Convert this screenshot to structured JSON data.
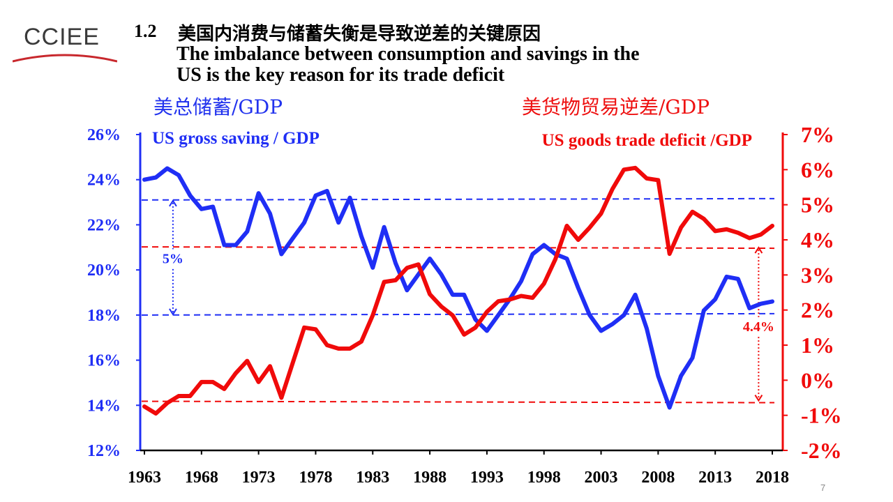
{
  "logo": {
    "text": "CCIEE"
  },
  "page_number": "7",
  "title": {
    "number": "1.2",
    "chinese": "美国内消费与储蓄失衡是导致逆差的关键原因",
    "english_line1": "The imbalance between consumption and savings in the",
    "english_line2": "US is the key reason for its trade deficit"
  },
  "left_cn_label": "美总储蓄/GDP",
  "right_cn_label": "美货物贸易逆差/GDP",
  "colors": {
    "saving": "#1f2ef5",
    "deficit": "#f00a0a",
    "axis_left": "#1f2ef5",
    "axis_right": "#f00a0a"
  },
  "chart_data": {
    "type": "line",
    "title": "",
    "x_ticks": [
      "1963",
      "1968",
      "1973",
      "1978",
      "1983",
      "1988",
      "1993",
      "1998",
      "2003",
      "2008",
      "2013",
      "2018"
    ],
    "xlim": [
      1963,
      2018
    ],
    "y_left": {
      "ylim": [
        12,
        26
      ],
      "ticks": [
        "12%",
        "14%",
        "16%",
        "18%",
        "20%",
        "22%",
        "24%",
        "26%"
      ],
      "tick_values": [
        12,
        14,
        16,
        18,
        20,
        22,
        24,
        26
      ]
    },
    "y_right": {
      "ylim": [
        -2,
        7
      ],
      "ticks": [
        "-2%",
        "-1%",
        "0%",
        "1%",
        "2%",
        "3%",
        "4%",
        "5%",
        "6%",
        "7%"
      ],
      "tick_values": [
        -2,
        -1,
        0,
        1,
        2,
        3,
        4,
        5,
        6,
        7
      ]
    },
    "series": [
      {
        "name": "US gross saving / GDP",
        "axis": "left",
        "x": [
          1963,
          1964,
          1965,
          1966,
          1967,
          1968,
          1969,
          1970,
          1971,
          1972,
          1973,
          1974,
          1975,
          1976,
          1977,
          1978,
          1979,
          1980,
          1981,
          1982,
          1983,
          1984,
          1985,
          1986,
          1987,
          1988,
          1989,
          1990,
          1991,
          1992,
          1993,
          1994,
          1995,
          1996,
          1997,
          1998,
          1999,
          2000,
          2001,
          2002,
          2003,
          2004,
          2005,
          2006,
          2007,
          2008,
          2009,
          2010,
          2011,
          2012,
          2013,
          2014,
          2015,
          2016,
          2017,
          2018
        ],
        "values": [
          24.0,
          24.1,
          24.5,
          24.2,
          23.3,
          22.7,
          22.8,
          21.1,
          21.1,
          21.7,
          23.4,
          22.5,
          20.7,
          21.4,
          22.1,
          23.3,
          23.5,
          22.1,
          23.2,
          21.5,
          20.1,
          21.9,
          20.3,
          19.1,
          19.8,
          20.5,
          19.8,
          18.9,
          18.9,
          17.8,
          17.3,
          18.0,
          18.7,
          19.5,
          20.7,
          21.1,
          20.7,
          20.5,
          19.2,
          18.0,
          17.3,
          17.6,
          18.0,
          18.9,
          17.4,
          15.3,
          13.9,
          15.3,
          16.1,
          18.2,
          18.7,
          19.7,
          19.6,
          18.3,
          18.5,
          18.6
        ]
      },
      {
        "name": "US goods trade deficit /GDP",
        "axis": "right",
        "x": [
          1963,
          1964,
          1965,
          1966,
          1967,
          1968,
          1969,
          1970,
          1971,
          1972,
          1973,
          1974,
          1975,
          1976,
          1977,
          1978,
          1979,
          1980,
          1981,
          1982,
          1983,
          1984,
          1985,
          1986,
          1987,
          1988,
          1989,
          1990,
          1991,
          1992,
          1993,
          1994,
          1995,
          1996,
          1997,
          1998,
          1999,
          2000,
          2001,
          2002,
          2003,
          2004,
          2005,
          2006,
          2007,
          2008,
          2009,
          2010,
          2011,
          2012,
          2013,
          2014,
          2015,
          2016,
          2017,
          2018
        ],
        "values": [
          -0.75,
          -0.95,
          -0.65,
          -0.45,
          -0.45,
          -0.05,
          -0.05,
          -0.25,
          0.2,
          0.55,
          -0.05,
          0.4,
          -0.5,
          0.5,
          1.5,
          1.45,
          1.0,
          0.9,
          0.9,
          1.1,
          1.85,
          2.8,
          2.85,
          3.2,
          3.3,
          2.45,
          2.1,
          1.85,
          1.3,
          1.5,
          1.95,
          2.25,
          2.3,
          2.4,
          2.35,
          2.75,
          3.45,
          4.4,
          4.0,
          4.35,
          4.75,
          5.45,
          6.0,
          6.05,
          5.75,
          5.7,
          3.6,
          4.35,
          4.8,
          4.6,
          4.25,
          4.3,
          4.2,
          4.05,
          4.15,
          4.4
        ]
      }
    ],
    "reference_lines": [
      {
        "axis": "left",
        "value": 18.0
      },
      {
        "axis": "left",
        "value": 23.1
      },
      {
        "axis": "right",
        "value": 3.8
      },
      {
        "axis": "right",
        "value": -0.6
      }
    ],
    "annotations": [
      {
        "text": "5%",
        "axis": "left",
        "from": 18.0,
        "to": 23.1,
        "x": 1965.5
      },
      {
        "text": "4.4%",
        "axis": "right",
        "from": -0.6,
        "to": 3.8,
        "x": 2016.8
      }
    ],
    "legend": [
      "US gross saving / GDP",
      "US goods trade deficit /GDP"
    ],
    "grid": false
  }
}
